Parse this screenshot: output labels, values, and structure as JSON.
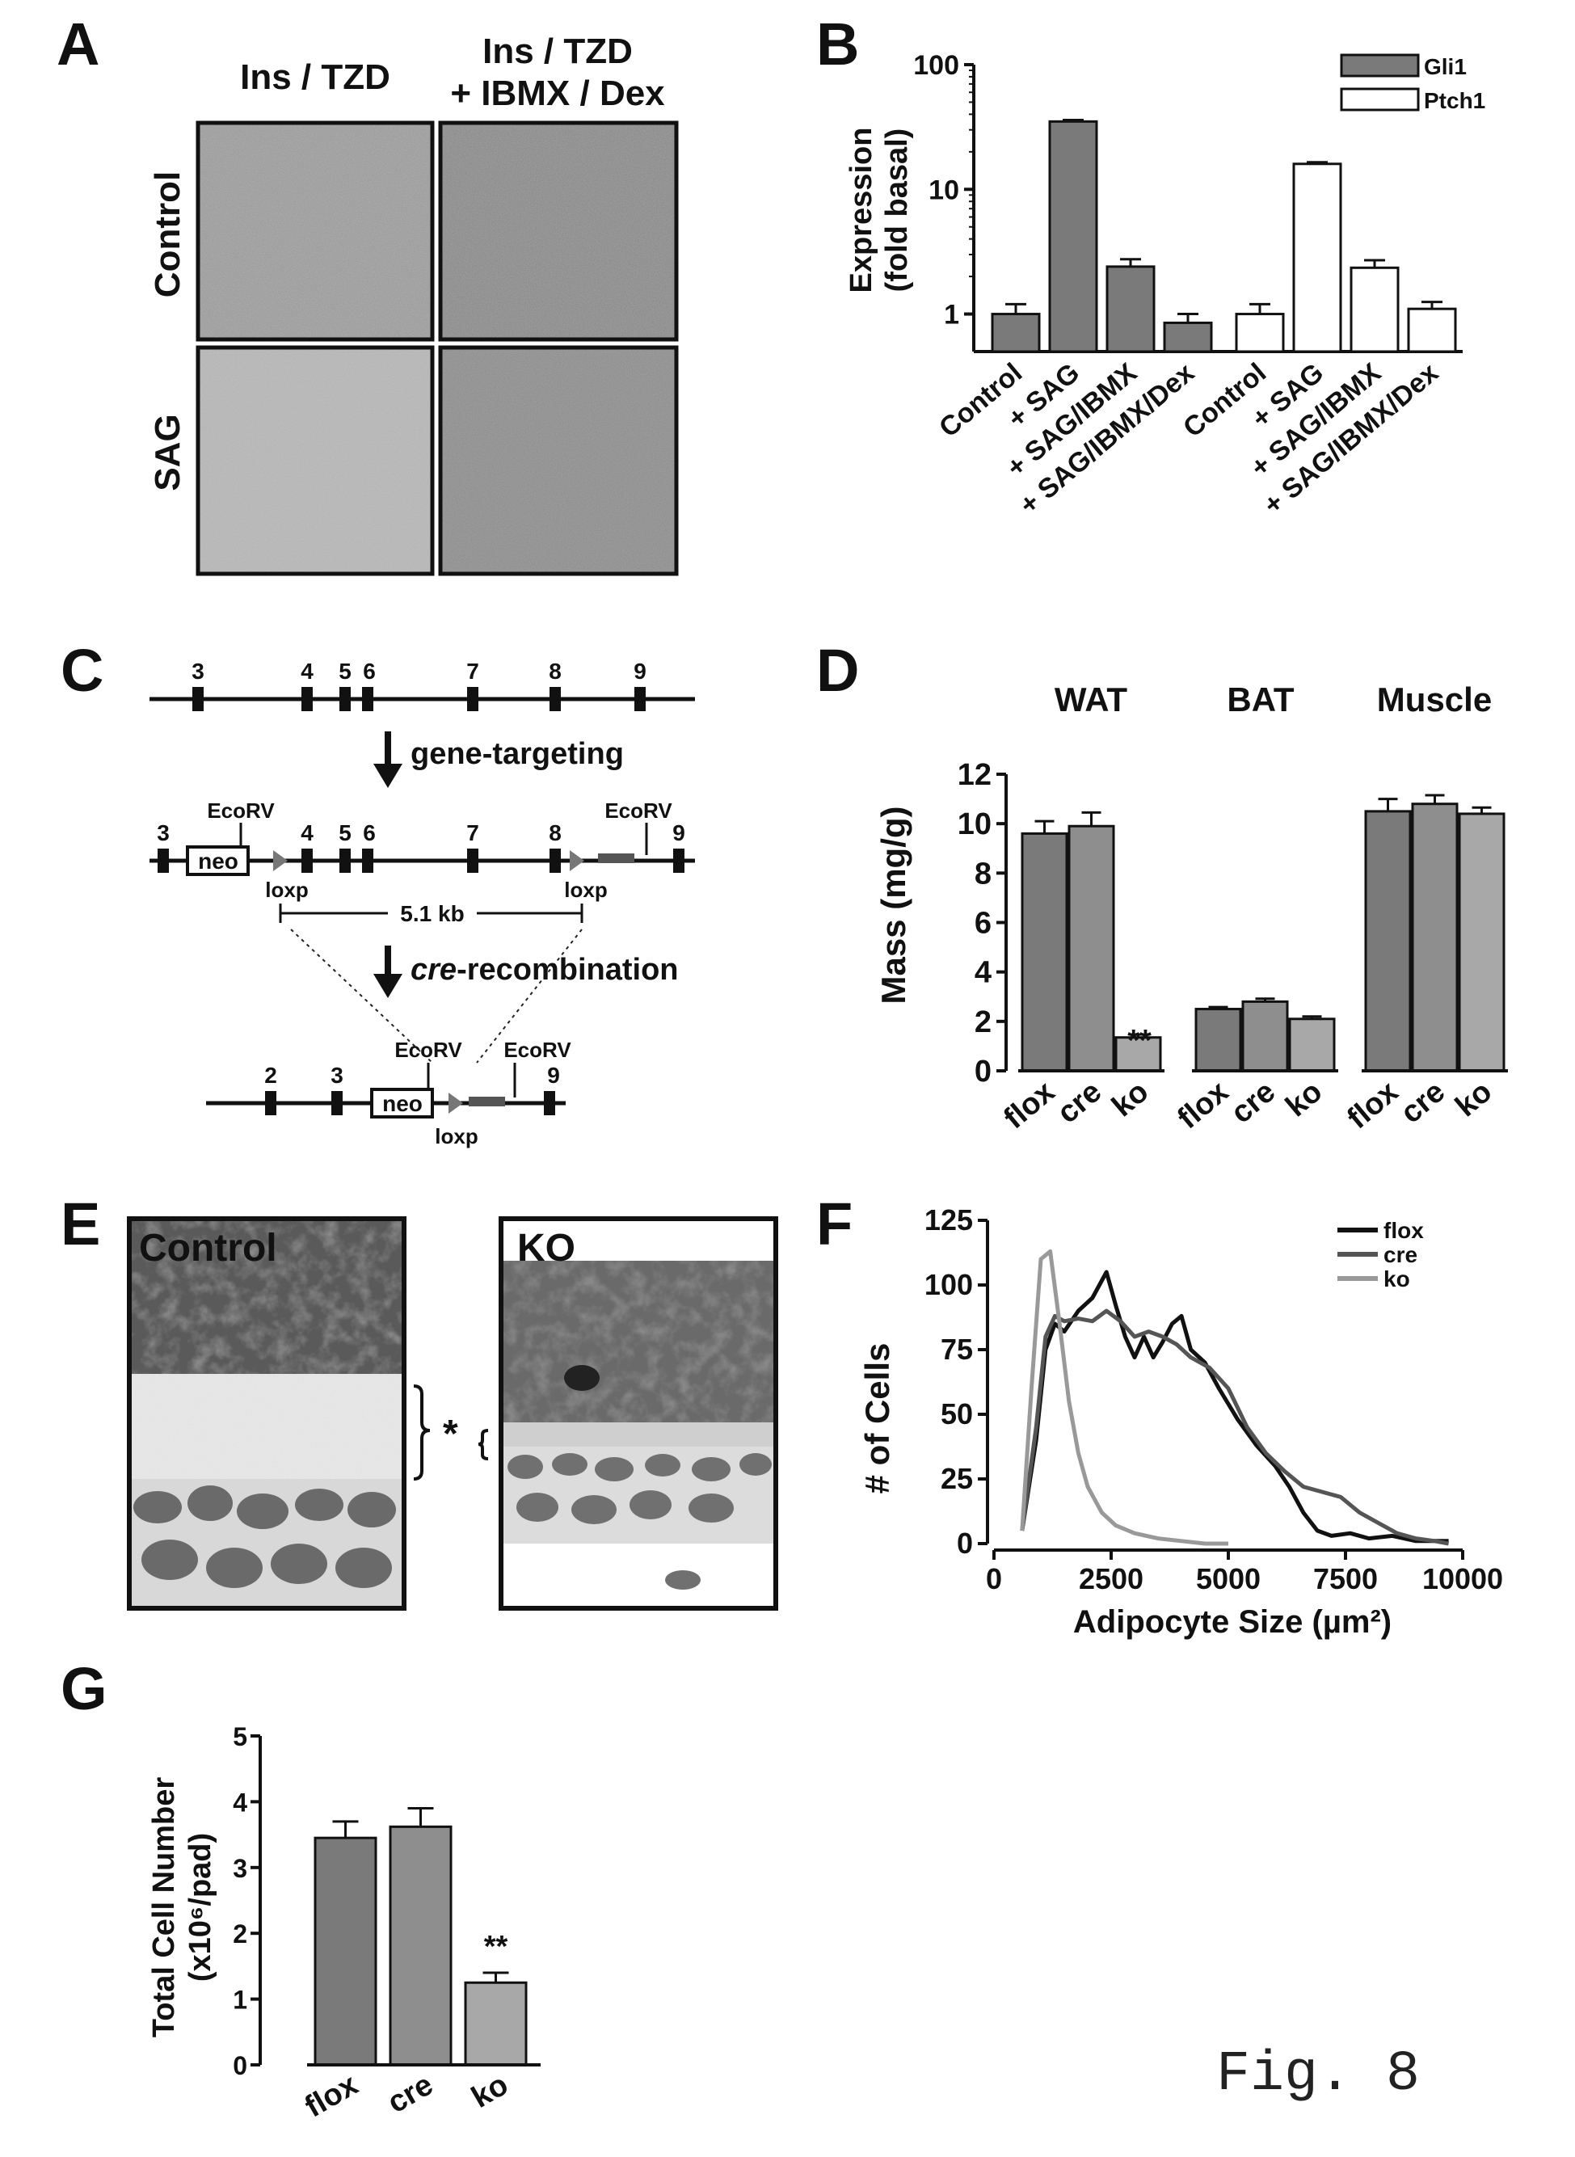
{
  "figure_label": "Fig. 8",
  "panels": {
    "A": {
      "letter": "A",
      "col_headers": [
        "Ins / TZD",
        "Ins / TZD",
        "+ IBMX / Dex"
      ],
      "row_headers": [
        "Control",
        "SAG"
      ]
    },
    "C": {
      "letter": "C",
      "exons_top": [
        "3",
        "4",
        "5",
        "6",
        "7",
        "8",
        "9"
      ],
      "arrow1": "gene-targeting",
      "exons_mid": [
        "3",
        "4",
        "5",
        "6",
        "7",
        "8",
        "9"
      ],
      "neo": "neo",
      "ecorv": "EcoRV",
      "loxp": "loxp",
      "distance": "5.1 kb",
      "arrow2_italic": "cre",
      "arrow2_rest": "-recombination",
      "exons_bottom": [
        "2",
        "3",
        "9"
      ]
    },
    "E": {
      "letter": "E",
      "left_label": "Control",
      "right_label": "KO",
      "asterisk": "*"
    }
  },
  "chart_data": [
    {
      "id": "B",
      "letter": "B",
      "type": "bar",
      "yscale": "log",
      "ylim": [
        0.5,
        100
      ],
      "yticks": [
        "1",
        "10",
        "100"
      ],
      "ylabel": [
        "Expression",
        "(fold basal)"
      ],
      "categories": [
        "Control",
        "+ SAG",
        "+ SAG/IBMX",
        "+ SAG/IBMX/Dex"
      ],
      "series": [
        {
          "name": "Gli1",
          "color": "#7a7a7a",
          "values": [
            1.0,
            35.0,
            2.4,
            0.85
          ],
          "errors": [
            0.2,
            1.0,
            0.35,
            0.15
          ]
        },
        {
          "name": "Ptch1",
          "color": "#ffffff",
          "values": [
            1.0,
            16.0,
            2.35,
            1.1
          ],
          "errors": [
            0.2,
            0.5,
            0.35,
            0.15
          ]
        }
      ]
    },
    {
      "id": "D",
      "letter": "D",
      "type": "bar",
      "ylim": [
        0,
        12
      ],
      "yticks": [
        "0",
        "2",
        "4",
        "6",
        "8",
        "10",
        "12"
      ],
      "ylabel": "Mass (mg/g)",
      "groups": [
        "WAT",
        "BAT",
        "Muscle"
      ],
      "categories": [
        "flox",
        "cre",
        "ko"
      ],
      "series": [
        {
          "name": "WAT",
          "values": [
            9.6,
            9.9,
            1.35
          ],
          "errors": [
            0.5,
            0.55,
            0.12
          ]
        },
        {
          "name": "BAT",
          "values": [
            2.5,
            2.8,
            2.1
          ],
          "errors": [
            0.08,
            0.12,
            0.1
          ]
        },
        {
          "name": "Muscle",
          "values": [
            10.5,
            10.8,
            10.4
          ],
          "errors": [
            0.5,
            0.35,
            0.25
          ]
        }
      ],
      "colors": [
        "#7a7a7a",
        "#8e8e8e",
        "#a8a8a8"
      ],
      "annotation": "**"
    },
    {
      "id": "F",
      "letter": "F",
      "type": "line",
      "xlim": [
        0,
        10000
      ],
      "ylim": [
        0,
        125
      ],
      "xticks": [
        "0",
        "2500",
        "5000",
        "7500",
        "10000"
      ],
      "yticks": [
        "0",
        "25",
        "50",
        "75",
        "100",
        "125"
      ],
      "xlabel": "Adipocyte Size (µm²)",
      "ylabel": "# of Cells",
      "series": [
        {
          "name": "flox",
          "color": "#111111",
          "x": [
            600,
            900,
            1100,
            1300,
            1500,
            1800,
            2100,
            2400,
            2600,
            2800,
            3000,
            3200,
            3400,
            3600,
            3800,
            4000,
            4200,
            4500,
            4800,
            5200,
            5600,
            6000,
            6300,
            6600,
            6900,
            7200,
            7600,
            8000,
            8500,
            9000,
            9700
          ],
          "y": [
            5,
            40,
            75,
            85,
            82,
            90,
            95,
            105,
            92,
            80,
            72,
            80,
            72,
            78,
            85,
            88,
            75,
            70,
            60,
            48,
            38,
            30,
            22,
            12,
            5,
            3,
            4,
            2,
            3,
            1,
            1
          ]
        },
        {
          "name": "cre",
          "color": "#555555",
          "x": [
            600,
            900,
            1100,
            1300,
            1500,
            1800,
            2100,
            2400,
            2700,
            3000,
            3300,
            3600,
            3900,
            4200,
            4600,
            5000,
            5400,
            5800,
            6200,
            6600,
            7000,
            7400,
            7800,
            8200,
            8600,
            9000,
            9400,
            9700
          ],
          "y": [
            5,
            45,
            80,
            88,
            86,
            87,
            86,
            90,
            86,
            80,
            82,
            80,
            77,
            72,
            68,
            60,
            45,
            35,
            28,
            22,
            20,
            18,
            12,
            8,
            4,
            2,
            1,
            0
          ]
        },
        {
          "name": "ko",
          "color": "#999999",
          "x": [
            600,
            800,
            1000,
            1200,
            1400,
            1600,
            1800,
            2000,
            2300,
            2600,
            3000,
            3500,
            4000,
            4500,
            5000
          ],
          "y": [
            5,
            60,
            110,
            113,
            85,
            55,
            35,
            22,
            12,
            7,
            4,
            2,
            1,
            0,
            0
          ]
        }
      ]
    },
    {
      "id": "G",
      "letter": "G",
      "type": "bar",
      "ylim": [
        0,
        5
      ],
      "yticks": [
        "0",
        "1",
        "2",
        "3",
        "4",
        "5"
      ],
      "ylabel": [
        "Total Cell Number",
        "(x10⁶/pad)"
      ],
      "categories": [
        "flox",
        "cre",
        "ko"
      ],
      "values": [
        3.45,
        3.62,
        1.25
      ],
      "errors": [
        0.25,
        0.28,
        0.15
      ],
      "colors": [
        "#7a7a7a",
        "#8e8e8e",
        "#a8a8a8"
      ],
      "annotation": "**"
    }
  ]
}
